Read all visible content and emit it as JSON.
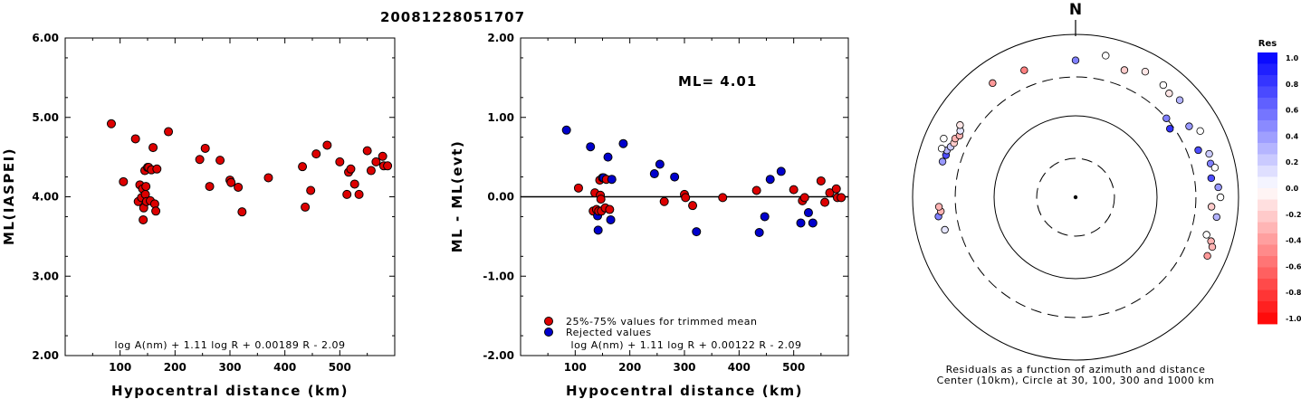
{
  "title": "20081228051707",
  "chart_data": [
    {
      "type": "scatter",
      "id": "left",
      "xlabel": "Hypocentral distance (km)",
      "ylabel": "ML(IASPEI)",
      "xlim": [
        0,
        600
      ],
      "ylim": [
        2.0,
        6.0
      ],
      "xticks": [
        "100",
        "200",
        "300",
        "400",
        "500"
      ],
      "yticks": [
        "2.00",
        "3.00",
        "4.00",
        "5.00",
        "6.00"
      ],
      "formula": "log A(nm) + 1.11 log R + 0.00189 R - 2.09",
      "marker_color": "#dd0000",
      "points": [
        [
          84,
          4.92
        ],
        [
          106,
          4.19
        ],
        [
          128,
          4.73
        ],
        [
          133,
          3.94
        ],
        [
          136,
          4.15
        ],
        [
          139,
          3.99
        ],
        [
          141,
          4.1
        ],
        [
          142,
          3.71
        ],
        [
          143,
          3.86
        ],
        [
          145,
          4.33
        ],
        [
          146,
          4.03
        ],
        [
          147,
          4.13
        ],
        [
          148,
          3.94
        ],
        [
          150,
          4.37
        ],
        [
          152,
          4.37
        ],
        [
          155,
          3.95
        ],
        [
          157,
          4.34
        ],
        [
          160,
          4.62
        ],
        [
          163,
          3.91
        ],
        [
          165,
          3.82
        ],
        [
          167,
          4.35
        ],
        [
          188,
          4.82
        ],
        [
          245,
          4.47
        ],
        [
          255,
          4.61
        ],
        [
          263,
          4.13
        ],
        [
          282,
          4.46
        ],
        [
          300,
          4.21
        ],
        [
          302,
          4.18
        ],
        [
          315,
          4.12
        ],
        [
          322,
          3.81
        ],
        [
          370,
          4.24
        ],
        [
          432,
          4.38
        ],
        [
          437,
          3.87
        ],
        [
          447,
          4.08
        ],
        [
          457,
          4.54
        ],
        [
          477,
          4.65
        ],
        [
          500,
          4.44
        ],
        [
          513,
          4.03
        ],
        [
          516,
          4.31
        ],
        [
          520,
          4.35
        ],
        [
          527,
          4.16
        ],
        [
          535,
          4.03
        ],
        [
          550,
          4.58
        ],
        [
          557,
          4.33
        ],
        [
          566,
          4.44
        ],
        [
          578,
          4.51
        ],
        [
          580,
          4.39
        ],
        [
          587,
          4.39
        ]
      ]
    },
    {
      "type": "scatter",
      "id": "middle",
      "xlabel": "Hypocentral distance (km)",
      "ylabel": "ML - ML(evt)",
      "xlim": [
        0,
        600
      ],
      "ylim": [
        -2.0,
        2.0
      ],
      "xticks": [
        "100",
        "200",
        "300",
        "400",
        "500"
      ],
      "yticks": [
        "-2.00",
        "-1.00",
        "0.00",
        "1.00",
        "2.00"
      ],
      "formula": "log A(nm) + 1.11 log R + 0.00122 R - 2.09",
      "ml_text": "ML=  4.01",
      "legend": [
        {
          "label": "25%-75% values for trimmed mean",
          "color": "#dd0000"
        },
        {
          "label": "Rejected values",
          "color": "#0000cc"
        }
      ],
      "points": [
        [
          84,
          0.84,
          "r"
        ],
        [
          106,
          0.11,
          "t"
        ],
        [
          128,
          0.63,
          "r"
        ],
        [
          133,
          -0.18,
          "t"
        ],
        [
          136,
          0.05,
          "t"
        ],
        [
          139,
          -0.16,
          "t"
        ],
        [
          141,
          -0.24,
          "r"
        ],
        [
          142,
          -0.42,
          "r"
        ],
        [
          143,
          -0.18,
          "t"
        ],
        [
          145,
          0.21,
          "t"
        ],
        [
          146,
          0.02,
          "t"
        ],
        [
          147,
          -0.03,
          "t"
        ],
        [
          148,
          -0.18,
          "t"
        ],
        [
          150,
          0.24,
          "r"
        ],
        [
          152,
          0.24,
          "r"
        ],
        [
          155,
          -0.14,
          "t"
        ],
        [
          157,
          0.22,
          "t"
        ],
        [
          160,
          0.5,
          "r"
        ],
        [
          163,
          -0.16,
          "t"
        ],
        [
          165,
          -0.29,
          "r"
        ],
        [
          167,
          0.22,
          "r"
        ],
        [
          188,
          0.67,
          "r"
        ],
        [
          245,
          0.29,
          "r"
        ],
        [
          255,
          0.41,
          "r"
        ],
        [
          263,
          -0.06,
          "t"
        ],
        [
          282,
          0.25,
          "r"
        ],
        [
          300,
          0.03,
          "t"
        ],
        [
          302,
          -0.01,
          "t"
        ],
        [
          315,
          -0.11,
          "t"
        ],
        [
          322,
          -0.44,
          "r"
        ],
        [
          370,
          -0.01,
          "t"
        ],
        [
          432,
          0.08,
          "t"
        ],
        [
          437,
          -0.45,
          "r"
        ],
        [
          447,
          -0.25,
          "r"
        ],
        [
          457,
          0.22,
          "r"
        ],
        [
          477,
          0.32,
          "r"
        ],
        [
          500,
          0.09,
          "t"
        ],
        [
          513,
          -0.33,
          "r"
        ],
        [
          516,
          -0.05,
          "t"
        ],
        [
          520,
          -0.01,
          "t"
        ],
        [
          527,
          -0.2,
          "r"
        ],
        [
          535,
          -0.33,
          "r"
        ],
        [
          550,
          0.2,
          "t"
        ],
        [
          557,
          -0.07,
          "t"
        ],
        [
          566,
          0.05,
          "t"
        ],
        [
          578,
          0.1,
          "t"
        ],
        [
          580,
          -0.01,
          "t"
        ],
        [
          587,
          -0.01,
          "t"
        ]
      ]
    },
    {
      "type": "polar-scatter",
      "id": "azimuth",
      "north_label": "N",
      "caption_line1": "Residuals as a function of azimuth and distance",
      "caption_line2": "Center (10km), Circle at 30, 100, 300 and 1000 km",
      "circles_km": [
        30,
        100,
        300,
        1000
      ],
      "circle_styles": [
        "dashed",
        "solid",
        "dashed",
        "solid"
      ],
      "points": [
        {
          "az": 324,
          "dist": 540,
          "res": -0.4
        },
        {
          "az": 338,
          "dist": 480,
          "res": -0.5
        },
        {
          "az": 0,
          "dist": 480,
          "res": 0.5
        },
        {
          "az": 12,
          "dist": 600,
          "res": 0.0
        },
        {
          "az": 21,
          "dist": 470,
          "res": -0.2
        },
        {
          "az": 29,
          "dist": 580,
          "res": -0.1
        },
        {
          "az": 38,
          "dist": 560,
          "res": 0.0
        },
        {
          "az": 42,
          "dist": 520,
          "res": -0.1
        },
        {
          "az": 47,
          "dist": 560,
          "res": 0.3
        },
        {
          "az": 49,
          "dist": 300,
          "res": 0.5
        },
        {
          "az": 54,
          "dist": 270,
          "res": 0.8
        },
        {
          "az": 58,
          "dist": 440,
          "res": 0.4
        },
        {
          "az": 62,
          "dist": 540,
          "res": 0.0
        },
        {
          "az": 69,
          "dist": 410,
          "res": 0.7
        },
        {
          "az": 72,
          "dist": 530,
          "res": 0.2
        },
        {
          "az": 76,
          "dist": 510,
          "res": 0.5
        },
        {
          "az": 78,
          "dist": 560,
          "res": 0.0
        },
        {
          "az": 82,
          "dist": 480,
          "res": 0.7
        },
        {
          "az": 86,
          "dist": 570,
          "res": 0.4
        },
        {
          "az": 90,
          "dist": 600,
          "res": 0.0
        },
        {
          "az": 94,
          "dist": 470,
          "res": -0.2
        },
        {
          "az": 98,
          "dist": 560,
          "res": 0.3
        },
        {
          "az": 108,
          "dist": 560,
          "res": -0.3
        },
        {
          "az": 106,
          "dist": 470,
          "res": 0.0
        },
        {
          "az": 110,
          "dist": 610,
          "res": -0.3
        },
        {
          "az": 114,
          "dist": 590,
          "res": -0.4
        },
        {
          "az": 256,
          "dist": 450,
          "res": 0.1
        },
        {
          "az": 262,
          "dist": 500,
          "res": 0.5
        },
        {
          "az": 264,
          "dist": 460,
          "res": -0.3
        },
        {
          "az": 266,
          "dist": 480,
          "res": -0.3
        },
        {
          "az": 285,
          "dist": 490,
          "res": 0.4
        },
        {
          "az": 288,
          "dist": 470,
          "res": 0.7
        },
        {
          "az": 290,
          "dist": 480,
          "res": 0.3
        },
        {
          "az": 292,
          "dist": 450,
          "res": 0.2
        },
        {
          "az": 294,
          "dist": 430,
          "res": -0.2
        },
        {
          "az": 296,
          "dist": 440,
          "res": -0.3
        },
        {
          "az": 298,
          "dist": 410,
          "res": -0.3
        },
        {
          "az": 300,
          "dist": 430,
          "res": 0.1
        },
        {
          "az": 302,
          "dist": 470,
          "res": -0.1
        },
        {
          "az": 290,
          "dist": 560,
          "res": 0.0
        },
        {
          "az": 294,
          "dist": 590,
          "res": 0.0
        }
      ]
    }
  ],
  "colorbar": {
    "title": "Res",
    "labels": [
      "1.0",
      "0.8",
      "0.6",
      "0.4",
      "0.2",
      "0.0",
      "-0.2",
      "-0.4",
      "-0.6",
      "-0.8",
      "-1.0"
    ]
  }
}
